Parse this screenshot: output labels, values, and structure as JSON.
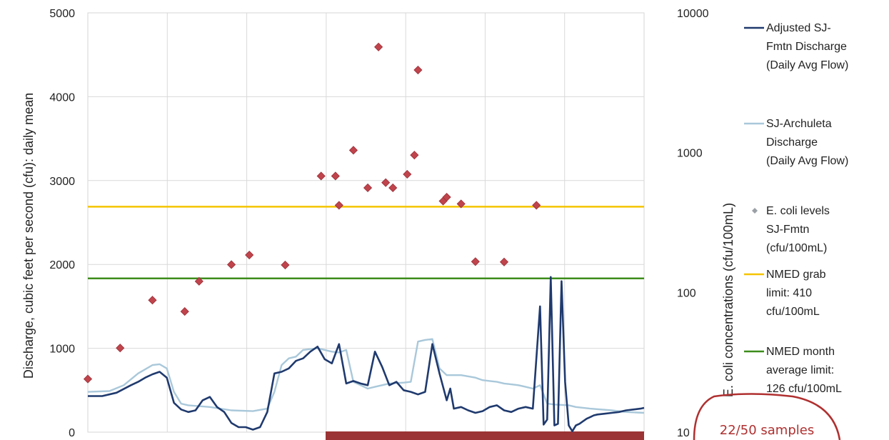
{
  "chart_data": {
    "type": "line",
    "title": "",
    "ylabel_left": "Discharge, cubic feet per second (cfu): daily mean",
    "ylabel_right": "E. coli concentrations (cfu/100mL)",
    "y_left_ticks": [
      "0",
      "1000",
      "2000",
      "3000",
      "4000",
      "5000"
    ],
    "y_right_ticks": [
      "10",
      "100",
      "1000",
      "10000"
    ],
    "ylim_left": [
      0,
      5000
    ],
    "ylim_right_log": [
      10,
      10000
    ],
    "x_index_range": [
      0,
      155
    ],
    "grid": true,
    "legend_position": "right",
    "series": [
      {
        "name": "Adjusted SJ-Fmtn Discharge (Daily Avg Flow)",
        "color": "#1f3a6e",
        "axis": "left",
        "style": "line",
        "x": [
          0,
          4,
          8,
          12,
          14,
          16,
          18,
          20,
          22,
          24,
          26,
          28,
          30,
          32,
          34,
          36,
          38,
          40,
          42,
          44,
          46,
          48,
          50,
          52,
          54,
          56,
          58,
          60,
          62,
          64,
          66,
          68,
          70,
          72,
          74,
          76,
          78,
          80,
          82,
          84,
          86,
          88,
          90,
          92,
          94,
          96,
          98,
          100,
          101,
          102,
          104,
          106,
          108,
          110,
          112,
          114,
          116,
          118,
          120,
          122,
          124,
          126,
          127,
          128,
          129,
          130,
          131,
          132,
          133,
          134,
          135,
          136,
          137,
          138,
          139,
          140,
          141,
          142,
          144,
          146,
          148,
          150,
          152,
          154,
          155
        ],
        "values": [
          430,
          430,
          470,
          560,
          600,
          650,
          690,
          720,
          650,
          350,
          270,
          240,
          260,
          380,
          420,
          300,
          240,
          110,
          60,
          60,
          30,
          60,
          240,
          700,
          720,
          760,
          850,
          880,
          960,
          1020,
          870,
          820,
          1050,
          580,
          610,
          580,
          560,
          960,
          780,
          560,
          600,
          500,
          480,
          450,
          480,
          1050,
          700,
          380,
          520,
          280,
          300,
          260,
          230,
          250,
          300,
          320,
          260,
          240,
          280,
          300,
          280,
          1500,
          90,
          150,
          1850,
          80,
          100,
          1800,
          600,
          80,
          10,
          80,
          100,
          130,
          160,
          180,
          200,
          210,
          220,
          230,
          240,
          260,
          270,
          280,
          290
        ]
      },
      {
        "name": "SJ-Archuleta Discharge (Daily Avg Flow)",
        "color": "#a9c8da",
        "axis": "left",
        "style": "line",
        "x": [
          0,
          6,
          10,
          14,
          18,
          20,
          22,
          24,
          26,
          28,
          34,
          40,
          46,
          50,
          52,
          54,
          56,
          58,
          60,
          64,
          68,
          70,
          72,
          74,
          76,
          78,
          80,
          84,
          88,
          90,
          92,
          94,
          96,
          98,
          100,
          104,
          108,
          110,
          112,
          114,
          116,
          118,
          120,
          122,
          124,
          126,
          128,
          130,
          134,
          136,
          140,
          146,
          150,
          155
        ],
        "values": [
          480,
          490,
          560,
          700,
          800,
          810,
          760,
          480,
          340,
          320,
          300,
          260,
          250,
          280,
          480,
          800,
          880,
          900,
          980,
          1000,
          960,
          950,
          980,
          600,
          560,
          520,
          540,
          580,
          590,
          600,
          1080,
          1100,
          1110,
          760,
          680,
          680,
          650,
          620,
          610,
          600,
          580,
          570,
          560,
          540,
          520,
          560,
          340,
          330,
          320,
          300,
          280,
          260,
          240,
          230
        ]
      },
      {
        "name": "E. coli levels SJ-Fmtn (cfu/100mL)",
        "color": "#c0444c",
        "axis": "right",
        "style": "marker",
        "x": [
          0,
          9,
          18,
          27,
          31,
          40,
          45,
          55,
          65,
          69,
          70,
          74,
          78,
          81,
          83,
          85,
          89,
          91,
          92,
          99,
          100,
          104,
          108,
          116,
          125
        ],
        "values": [
          24,
          40,
          88,
          73,
          120,
          158,
          185,
          157,
          680,
          680,
          420,
          1040,
          560,
          5700,
          610,
          560,
          700,
          960,
          3900,
          450,
          480,
          430,
          166,
          165,
          420
        ]
      },
      {
        "name": "NMED grab limit: 410 cfu/100mL",
        "color": "#f5c400",
        "axis": "right",
        "style": "hline",
        "value": 410
      },
      {
        "name": "NMED month average limit: 126 cfu/100mL",
        "color": "#3d8c1c",
        "axis": "right",
        "style": "hline",
        "value": 126
      }
    ]
  },
  "callout": {
    "text": "22/50 samples",
    "color": "#b03030"
  }
}
